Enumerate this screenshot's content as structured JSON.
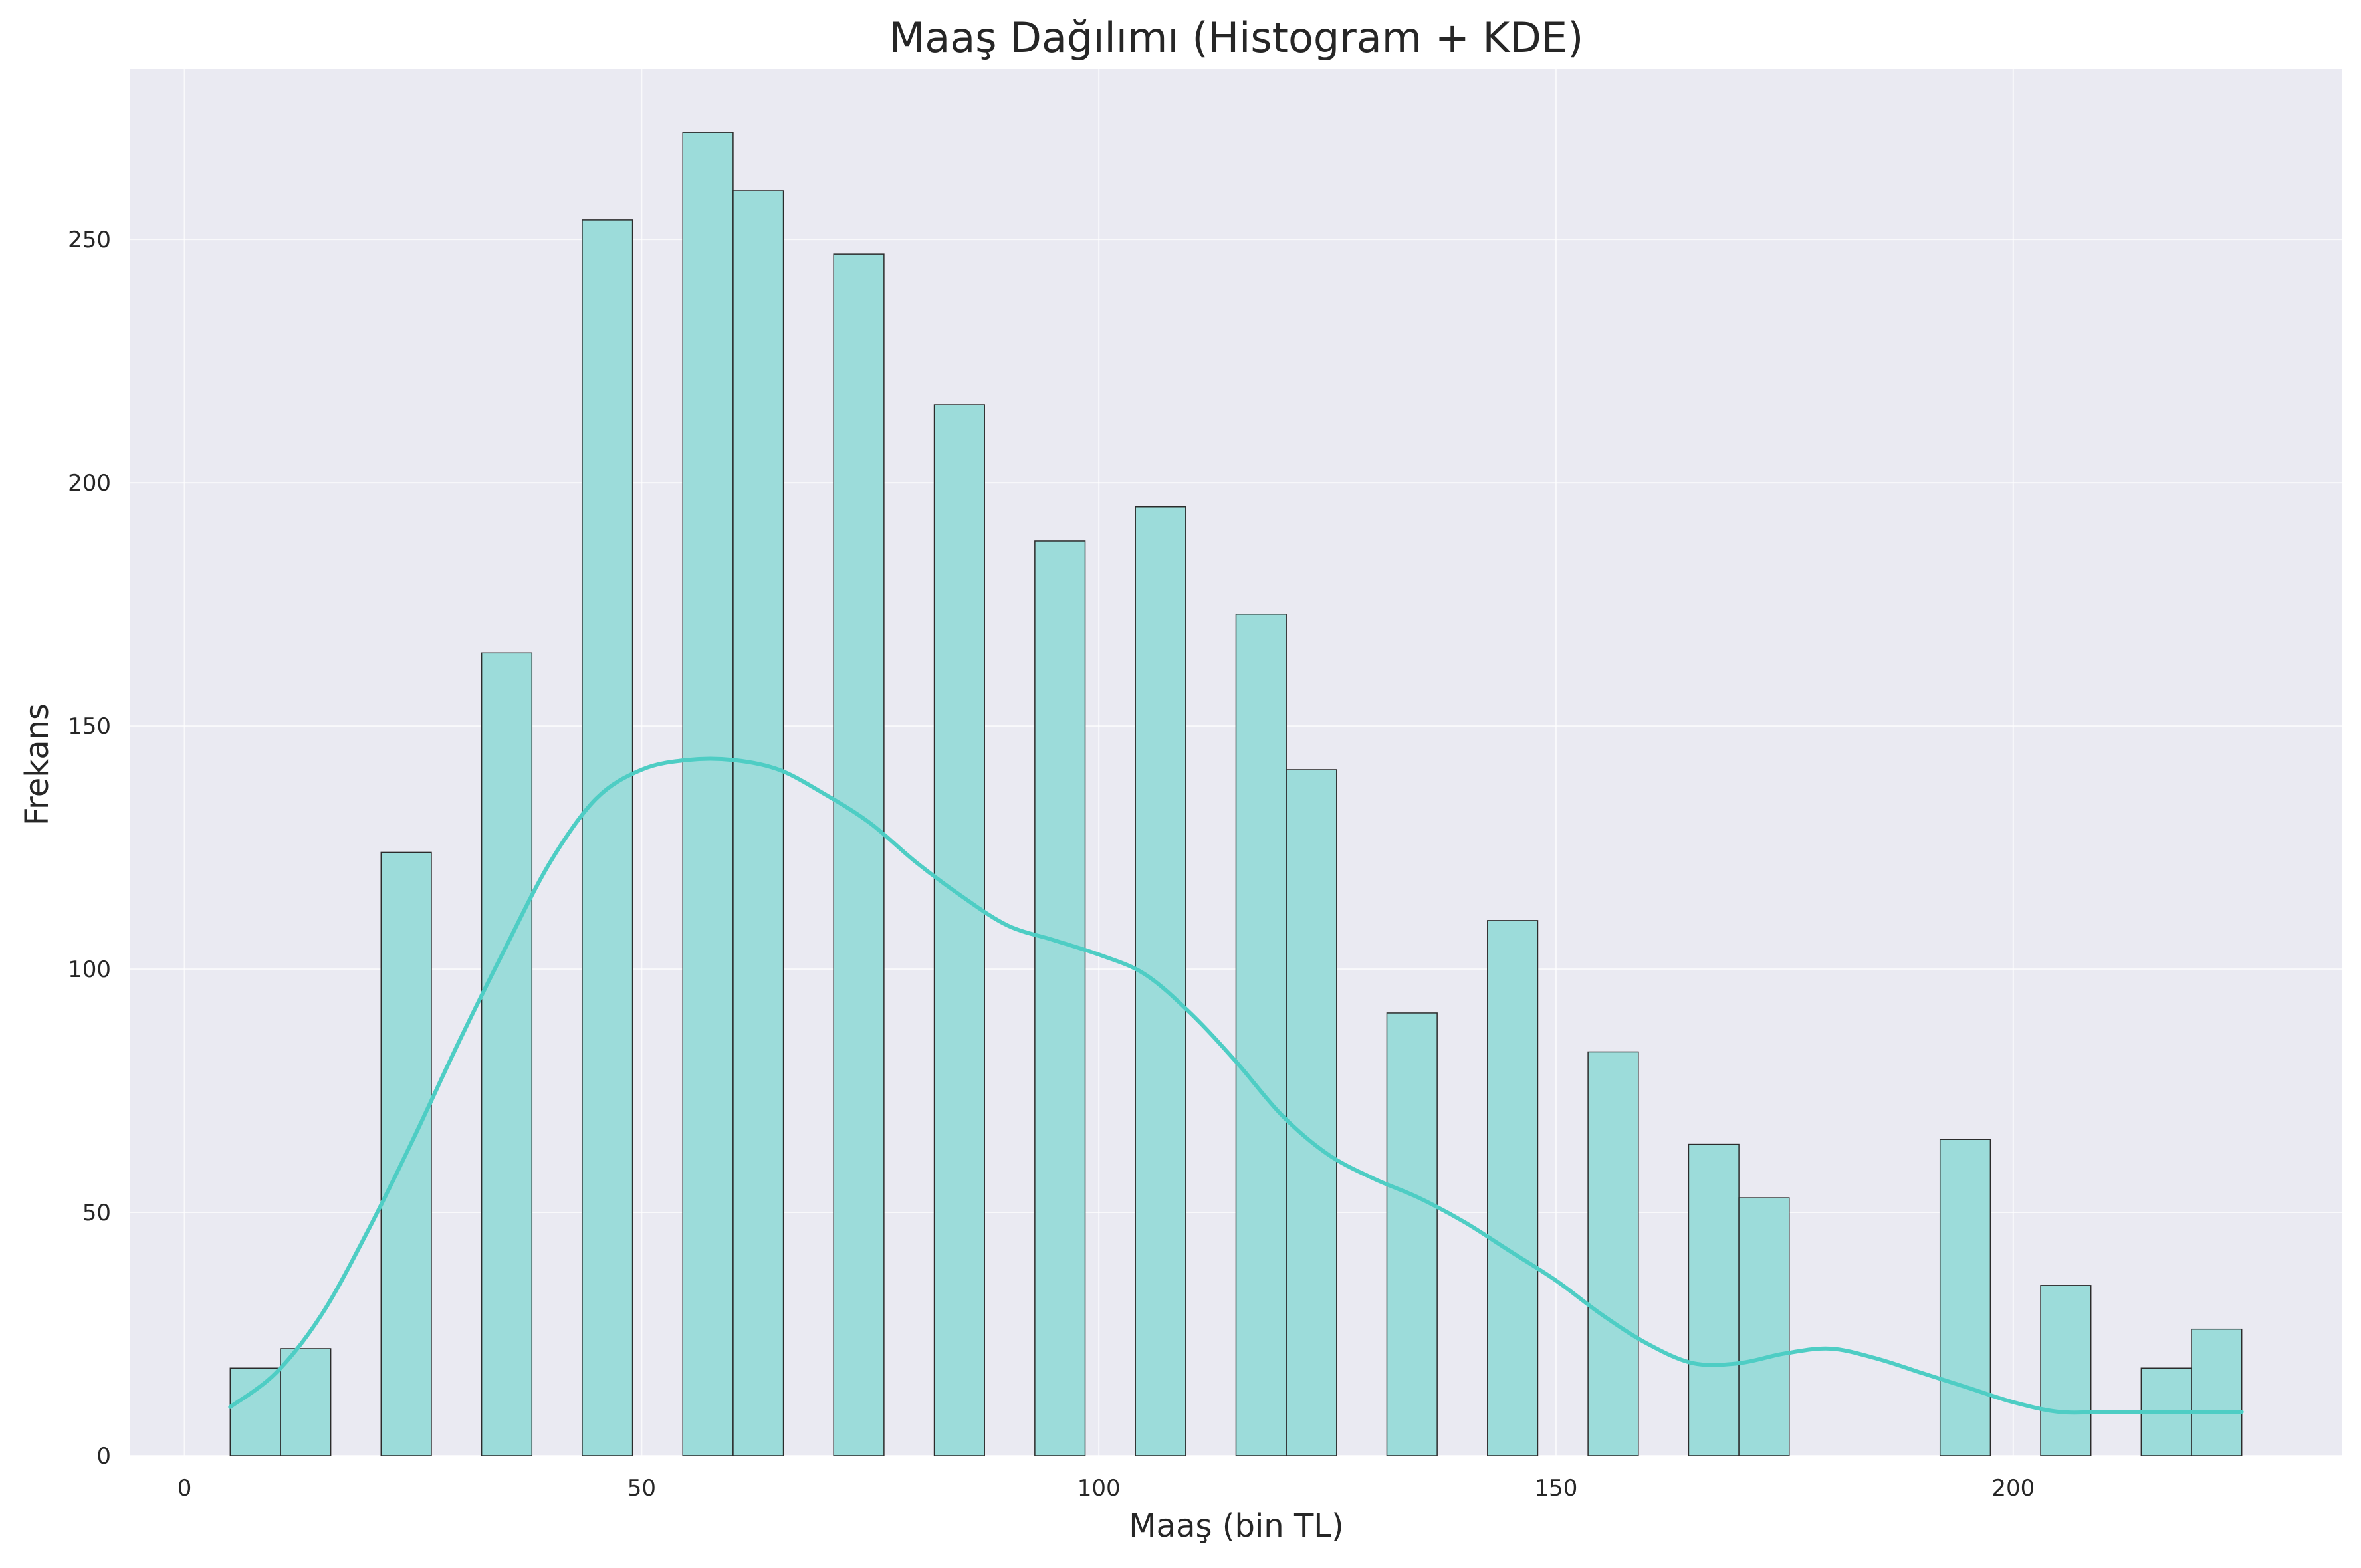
{
  "chart_data": {
    "type": "bar",
    "title": "Maaş Dağılımı (Histogram + KDE)",
    "xlabel": "Maaş (bin TL)",
    "ylabel": "Frekans",
    "xlim": [
      -6,
      236
    ],
    "ylim": [
      0,
      285
    ],
    "x_ticks": [
      "0",
      "50",
      "100",
      "150",
      "200"
    ],
    "x_tick_values": [
      0,
      50,
      100,
      150,
      200
    ],
    "y_ticks": [
      "0",
      "50",
      "100",
      "150",
      "200",
      "250"
    ],
    "y_tick_values": [
      0,
      50,
      100,
      150,
      200,
      250
    ],
    "grid": true,
    "bin_width": 5.5,
    "bins": [
      {
        "start": 5.0,
        "end": 10.5,
        "count": 18
      },
      {
        "start": 10.5,
        "end": 16.0,
        "count": 22
      },
      {
        "start": 21.5,
        "end": 27.0,
        "count": 124
      },
      {
        "start": 32.5,
        "end": 38.0,
        "count": 165
      },
      {
        "start": 43.5,
        "end": 49.0,
        "count": 254
      },
      {
        "start": 54.5,
        "end": 60.0,
        "count": 272
      },
      {
        "start": 60.0,
        "end": 65.5,
        "count": 260
      },
      {
        "start": 71.0,
        "end": 76.5,
        "count": 247
      },
      {
        "start": 82.0,
        "end": 87.5,
        "count": 216
      },
      {
        "start": 93.0,
        "end": 98.5,
        "count": 188
      },
      {
        "start": 104.0,
        "end": 109.5,
        "count": 195
      },
      {
        "start": 115.0,
        "end": 120.5,
        "count": 173
      },
      {
        "start": 120.5,
        "end": 126.0,
        "count": 141
      },
      {
        "start": 131.5,
        "end": 137.0,
        "count": 91
      },
      {
        "start": 142.5,
        "end": 148.0,
        "count": 110
      },
      {
        "start": 153.5,
        "end": 159.0,
        "count": 83
      },
      {
        "start": 164.5,
        "end": 170.0,
        "count": 64
      },
      {
        "start": 170.0,
        "end": 175.5,
        "count": 53
      },
      {
        "start": 192.0,
        "end": 197.5,
        "count": 65
      },
      {
        "start": 203.0,
        "end": 208.5,
        "count": 35
      },
      {
        "start": 214.0,
        "end": 219.5,
        "count": 18
      },
      {
        "start": 219.5,
        "end": 225.0,
        "count": 26
      }
    ],
    "kde": {
      "x": [
        5,
        10,
        15,
        20,
        25,
        30,
        35,
        40,
        45,
        50,
        55,
        60,
        65,
        70,
        75,
        80,
        85,
        90,
        95,
        100,
        105,
        110,
        115,
        120,
        125,
        130,
        135,
        140,
        145,
        150,
        155,
        160,
        165,
        170,
        175,
        180,
        185,
        190,
        195,
        200,
        205,
        210,
        215,
        220,
        225
      ],
      "y": [
        10,
        17,
        29,
        46,
        65,
        85,
        104,
        122,
        135,
        141,
        143,
        143,
        141,
        136,
        130,
        122,
        115,
        109,
        106,
        103,
        99,
        91,
        81,
        70,
        62,
        57,
        53,
        48,
        42,
        36,
        29,
        23,
        19,
        19,
        21,
        22,
        20,
        17,
        14,
        11,
        9,
        9,
        9,
        9,
        9
      ]
    },
    "colors": {
      "bar_fill": "#9cdcda",
      "bar_edge": "#2b2b2b",
      "kde_line": "#4ecdc4",
      "plot_bg": "#eaeaf2",
      "grid": "#ffffff"
    }
  }
}
